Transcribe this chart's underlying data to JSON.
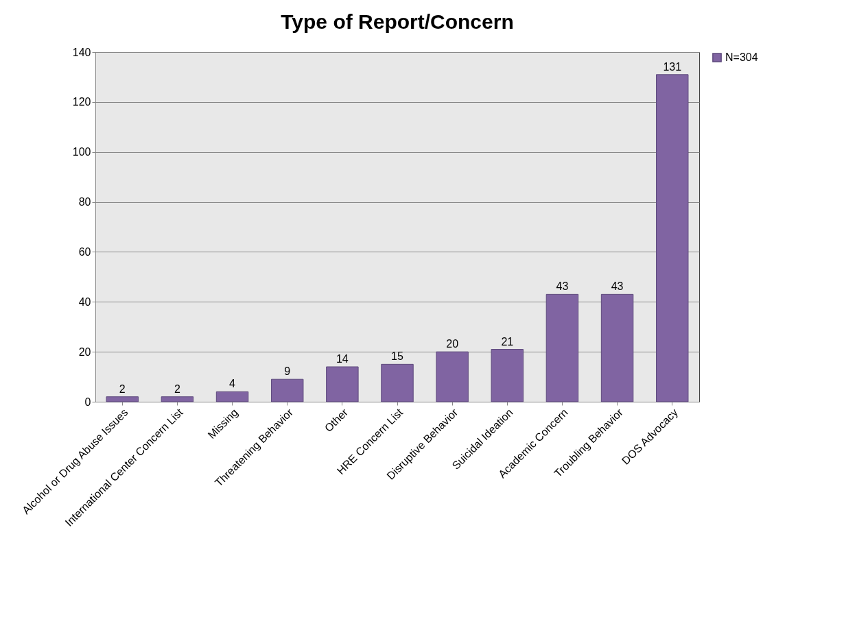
{
  "chart_data": {
    "type": "bar",
    "title": "Type of Report/Concern",
    "categories": [
      "Alcohol or Drug Abuse Issues",
      "International Center Concern List",
      "Missing",
      "Threatening Behavior",
      "Other",
      "HRE Concern List",
      "Disruptive Behavior",
      "Suicidal Ideation",
      "Academic Concern",
      "Troubling Behavior",
      "DOS Advocacy"
    ],
    "series": [
      {
        "name": "N=304",
        "color": "#8064a2",
        "values": [
          2,
          2,
          4,
          9,
          14,
          15,
          20,
          21,
          43,
          43,
          131
        ]
      }
    ],
    "ylim": [
      0,
      140
    ],
    "yticks": [
      0,
      20,
      40,
      60,
      80,
      100,
      120,
      140
    ],
    "grid": "y",
    "legend": "right",
    "data_labels": true
  }
}
